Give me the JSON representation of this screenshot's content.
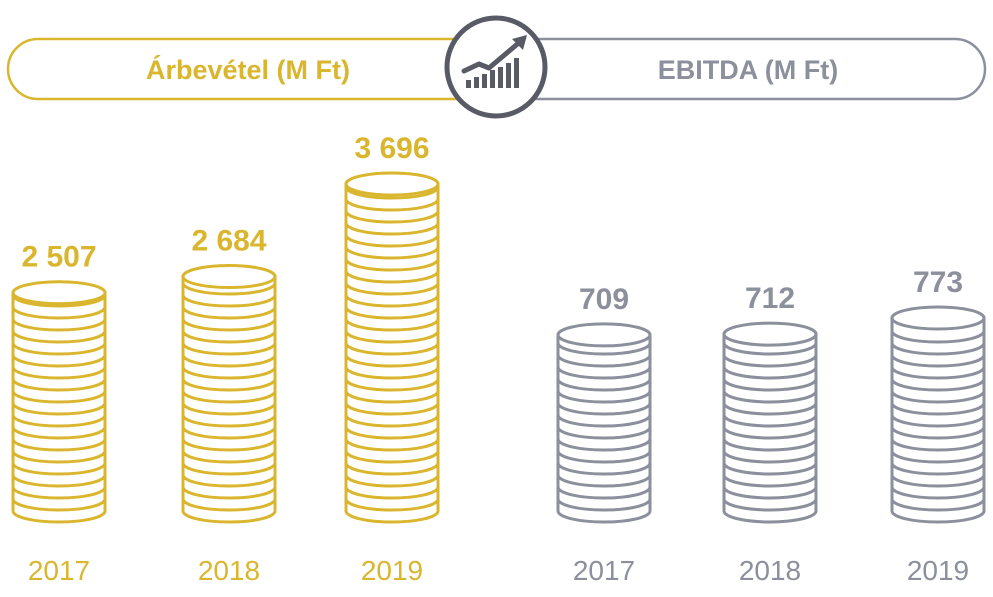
{
  "chart_data": [
    {
      "type": "bar",
      "title": "Árbevétel (M Ft)",
      "categories": [
        "2017",
        "2018",
        "2019"
      ],
      "values": [
        2507,
        2684,
        3696
      ],
      "value_labels": [
        "2 507",
        "2 684",
        "3 696"
      ],
      "color": "#d9b62e"
    },
    {
      "type": "bar",
      "title": "EBITDA (M Ft)",
      "categories": [
        "2017",
        "2018",
        "2019"
      ],
      "values": [
        709,
        712,
        773
      ],
      "value_labels": [
        "709",
        "712",
        "773"
      ],
      "color": "#8c8f9c"
    }
  ],
  "center_icon": "growth-chart-icon",
  "colors": {
    "gold": "#d9b62e",
    "gray": "#8c8f9c",
    "dark": "#585b66"
  }
}
